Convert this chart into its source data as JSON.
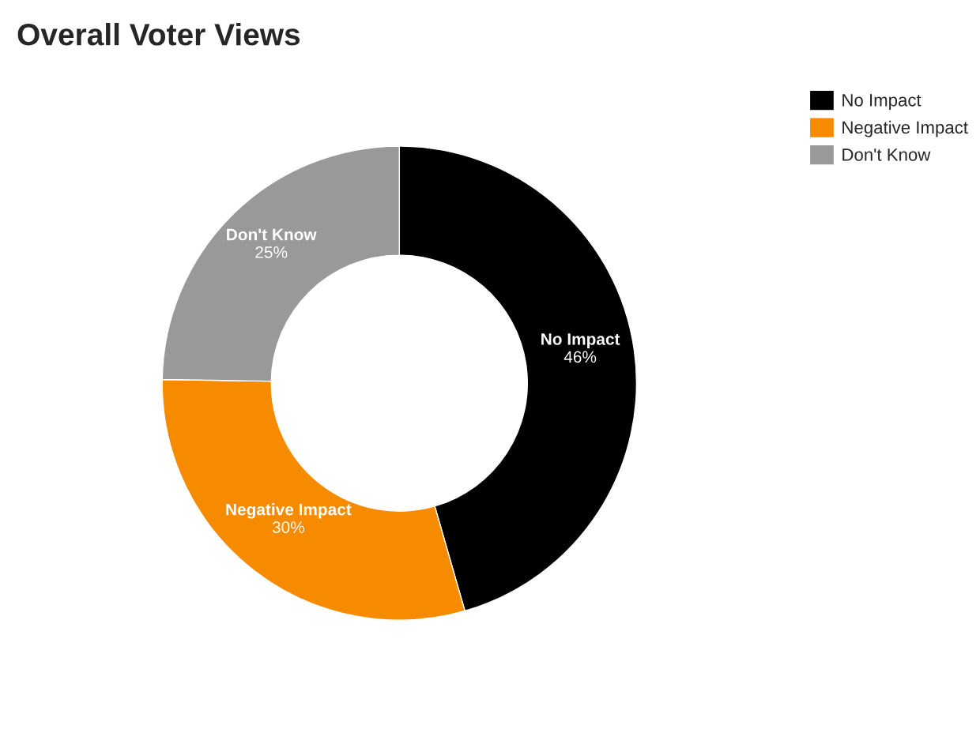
{
  "chart_data": {
    "type": "donut",
    "title": "Overall Voter Views",
    "categories": [
      "No Impact",
      "Negative Impact",
      "Don't Know"
    ],
    "values": [
      46,
      30,
      25
    ],
    "colors": [
      "#000000",
      "#f68b00",
      "#999999"
    ],
    "value_labels": [
      "46%",
      "30%",
      "25%"
    ],
    "legend": "top right"
  }
}
